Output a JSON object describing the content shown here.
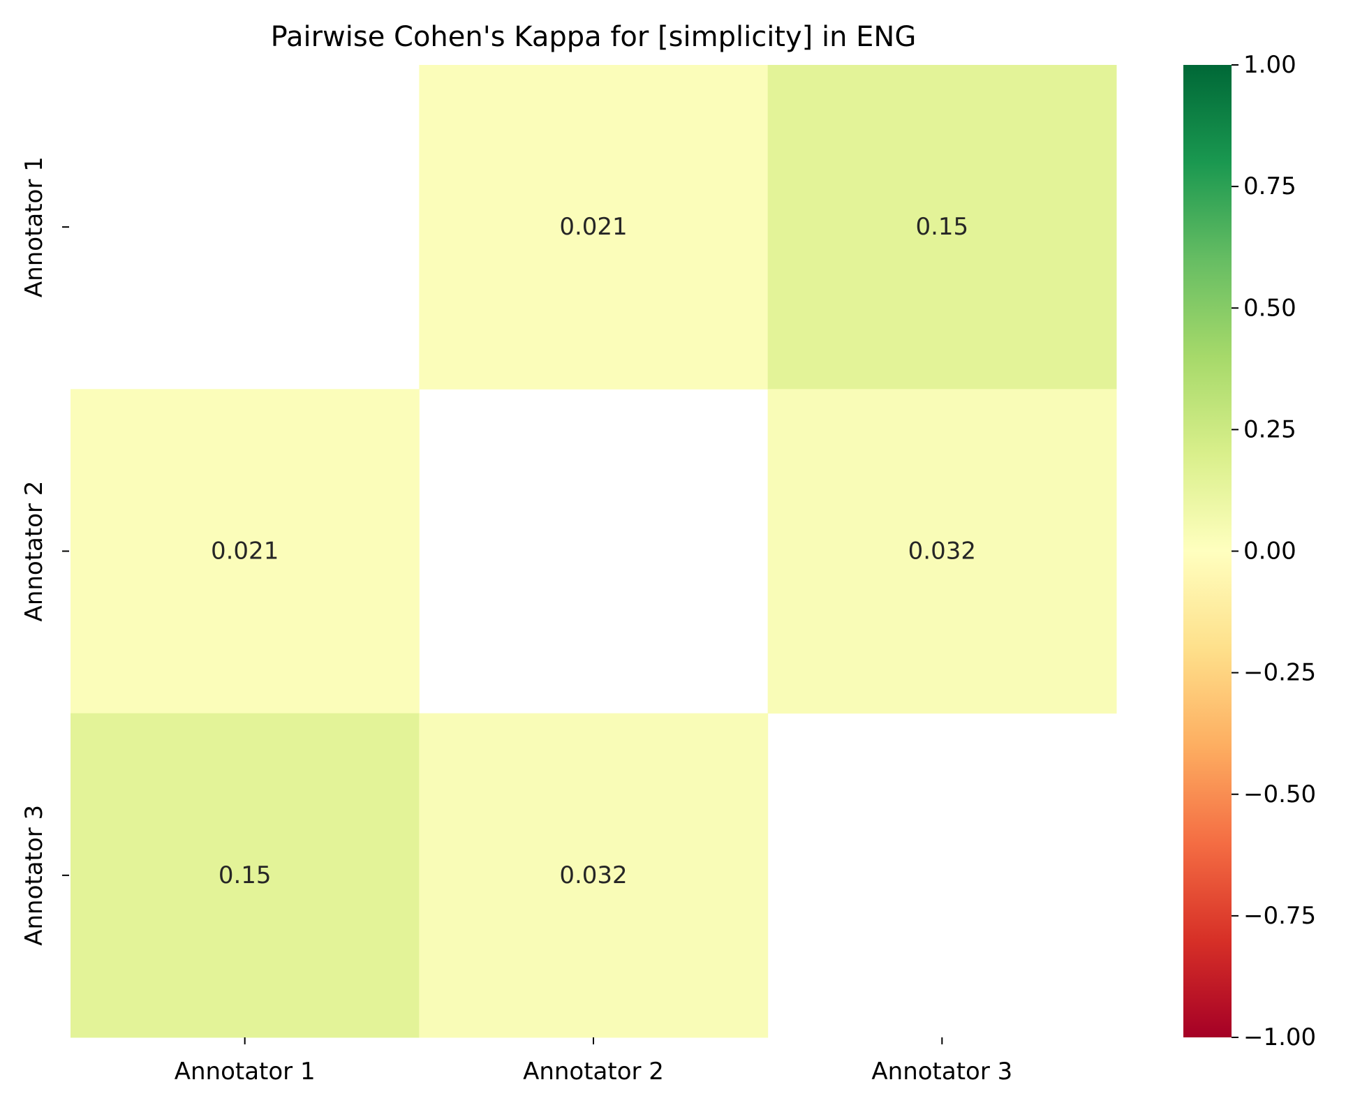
{
  "chart_data": {
    "type": "heatmap",
    "title": "Pairwise Cohen's Kappa for [simplicity] in ENG",
    "xlabel": "",
    "ylabel": "",
    "x_categories": [
      "Annotator 1",
      "Annotator 2",
      "Annotator 3"
    ],
    "y_categories": [
      "Annotator 1",
      "Annotator 2",
      "Annotator 3"
    ],
    "values": [
      [
        null,
        0.021,
        0.15
      ],
      [
        0.021,
        null,
        0.032
      ],
      [
        0.15,
        0.032,
        null
      ]
    ],
    "cell_labels": [
      [
        "",
        "0.021",
        "0.15"
      ],
      [
        "0.021",
        "",
        "0.032"
      ],
      [
        "0.15",
        "0.032",
        ""
      ]
    ],
    "colorbar": {
      "colormap": "RdYlGn",
      "range": [
        -1.0,
        1.0
      ],
      "ticks": [
        1.0,
        0.75,
        0.5,
        0.25,
        0.0,
        -0.25,
        -0.5,
        -0.75,
        -1.0
      ],
      "tick_labels": [
        "1.00",
        "0.75",
        "0.50",
        "0.25",
        "0.00",
        "−0.25",
        "−0.50",
        "−0.75",
        "−1.00"
      ]
    },
    "diagonal_masked": true,
    "grid": false
  }
}
